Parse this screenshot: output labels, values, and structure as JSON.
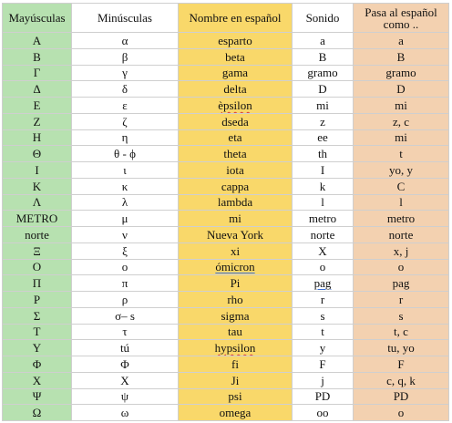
{
  "headers": {
    "mayusculas": "Mayúsculas",
    "minusculas": "Minúsculas",
    "nombre": "Nombre en español",
    "sonido": "Sonido",
    "pasa": "Pasa al español como .."
  },
  "colors": {
    "mayusculas": "#b7e1b0",
    "nombre": "#f9d86a",
    "pasa": "#f3d1b0",
    "border": "#cfcfcf"
  },
  "rows": [
    {
      "mayuscula": "Α",
      "minuscula": "α",
      "nombre": "esparto",
      "sonido": "a",
      "pasa": "a"
    },
    {
      "mayuscula": "Β",
      "minuscula": "β",
      "nombre": "beta",
      "sonido": "B",
      "pasa": "B"
    },
    {
      "mayuscula": "Γ",
      "minuscula": "γ",
      "nombre": "gama",
      "sonido": "gramo",
      "pasa": "gramo"
    },
    {
      "mayuscula": "Δ",
      "minuscula": "δ",
      "nombre": "delta",
      "sonido": "D",
      "pasa": "D"
    },
    {
      "mayuscula": "Ε",
      "minuscula": "ε",
      "nombre": "èpsilon",
      "sonido": "mi",
      "pasa": "mi"
    },
    {
      "mayuscula": "Ζ",
      "minuscula": "ζ",
      "nombre": "dseda",
      "sonido": "z",
      "pasa": "z, c"
    },
    {
      "mayuscula": "Η",
      "minuscula": "η",
      "nombre": "eta",
      "sonido": "ee",
      "pasa": "mi"
    },
    {
      "mayuscula": "Θ",
      "minuscula": "θ - ϕ",
      "nombre": "theta",
      "sonido": "th",
      "pasa": "t"
    },
    {
      "mayuscula": "Ι",
      "minuscula": "ι",
      "nombre": "iota",
      "sonido": "I",
      "pasa": "yo, y"
    },
    {
      "mayuscula": "Κ",
      "minuscula": "κ",
      "nombre": "cappa",
      "sonido": "k",
      "pasa": "C"
    },
    {
      "mayuscula": "Λ",
      "minuscula": "λ",
      "nombre": "lambda",
      "sonido": "l",
      "pasa": "l"
    },
    {
      "mayuscula": "METRO",
      "minuscula": "μ",
      "nombre": "mi",
      "sonido": "metro",
      "pasa": "metro"
    },
    {
      "mayuscula": "norte",
      "minuscula": "ν",
      "nombre": "Nueva York",
      "sonido": "norte",
      "pasa": "norte"
    },
    {
      "mayuscula": "Ξ",
      "minuscula": "ξ",
      "nombre": "xi",
      "sonido": "X",
      "pasa": "x, j"
    },
    {
      "mayuscula": "Ο",
      "minuscula": "ο",
      "nombre": "ómicron",
      "sonido": "o",
      "pasa": "o"
    },
    {
      "mayuscula": "Π",
      "minuscula": "π",
      "nombre": "Pi",
      "sonido": "pag",
      "pasa": "pag"
    },
    {
      "mayuscula": "Ρ",
      "minuscula": "ρ",
      "nombre": "rho",
      "sonido": "r",
      "pasa": "r"
    },
    {
      "mayuscula": "Σ",
      "minuscula": "σ– s",
      "nombre": "sigma",
      "sonido": "s",
      "pasa": "s"
    },
    {
      "mayuscula": "Τ",
      "minuscula": "τ",
      "nombre": "tau",
      "sonido": "t",
      "pasa": "t, c"
    },
    {
      "mayuscula": "Υ",
      "minuscula": "tú",
      "nombre": "hypsilon",
      "sonido": "y",
      "pasa": "tu, yo"
    },
    {
      "mayuscula": "Φ",
      "minuscula": "Φ",
      "nombre": "fi",
      "sonido": "F",
      "pasa": "F"
    },
    {
      "mayuscula": "Χ",
      "minuscula": "Χ",
      "nombre": "Ji",
      "sonido": "j",
      "pasa": "c, q, k"
    },
    {
      "mayuscula": "Ψ",
      "minuscula": "ψ",
      "nombre": "psi",
      "sonido": "PD",
      "pasa": "PD"
    },
    {
      "mayuscula": "Ω",
      "minuscula": "ω",
      "nombre": "omega",
      "sonido": "oo",
      "pasa": "o"
    }
  ]
}
